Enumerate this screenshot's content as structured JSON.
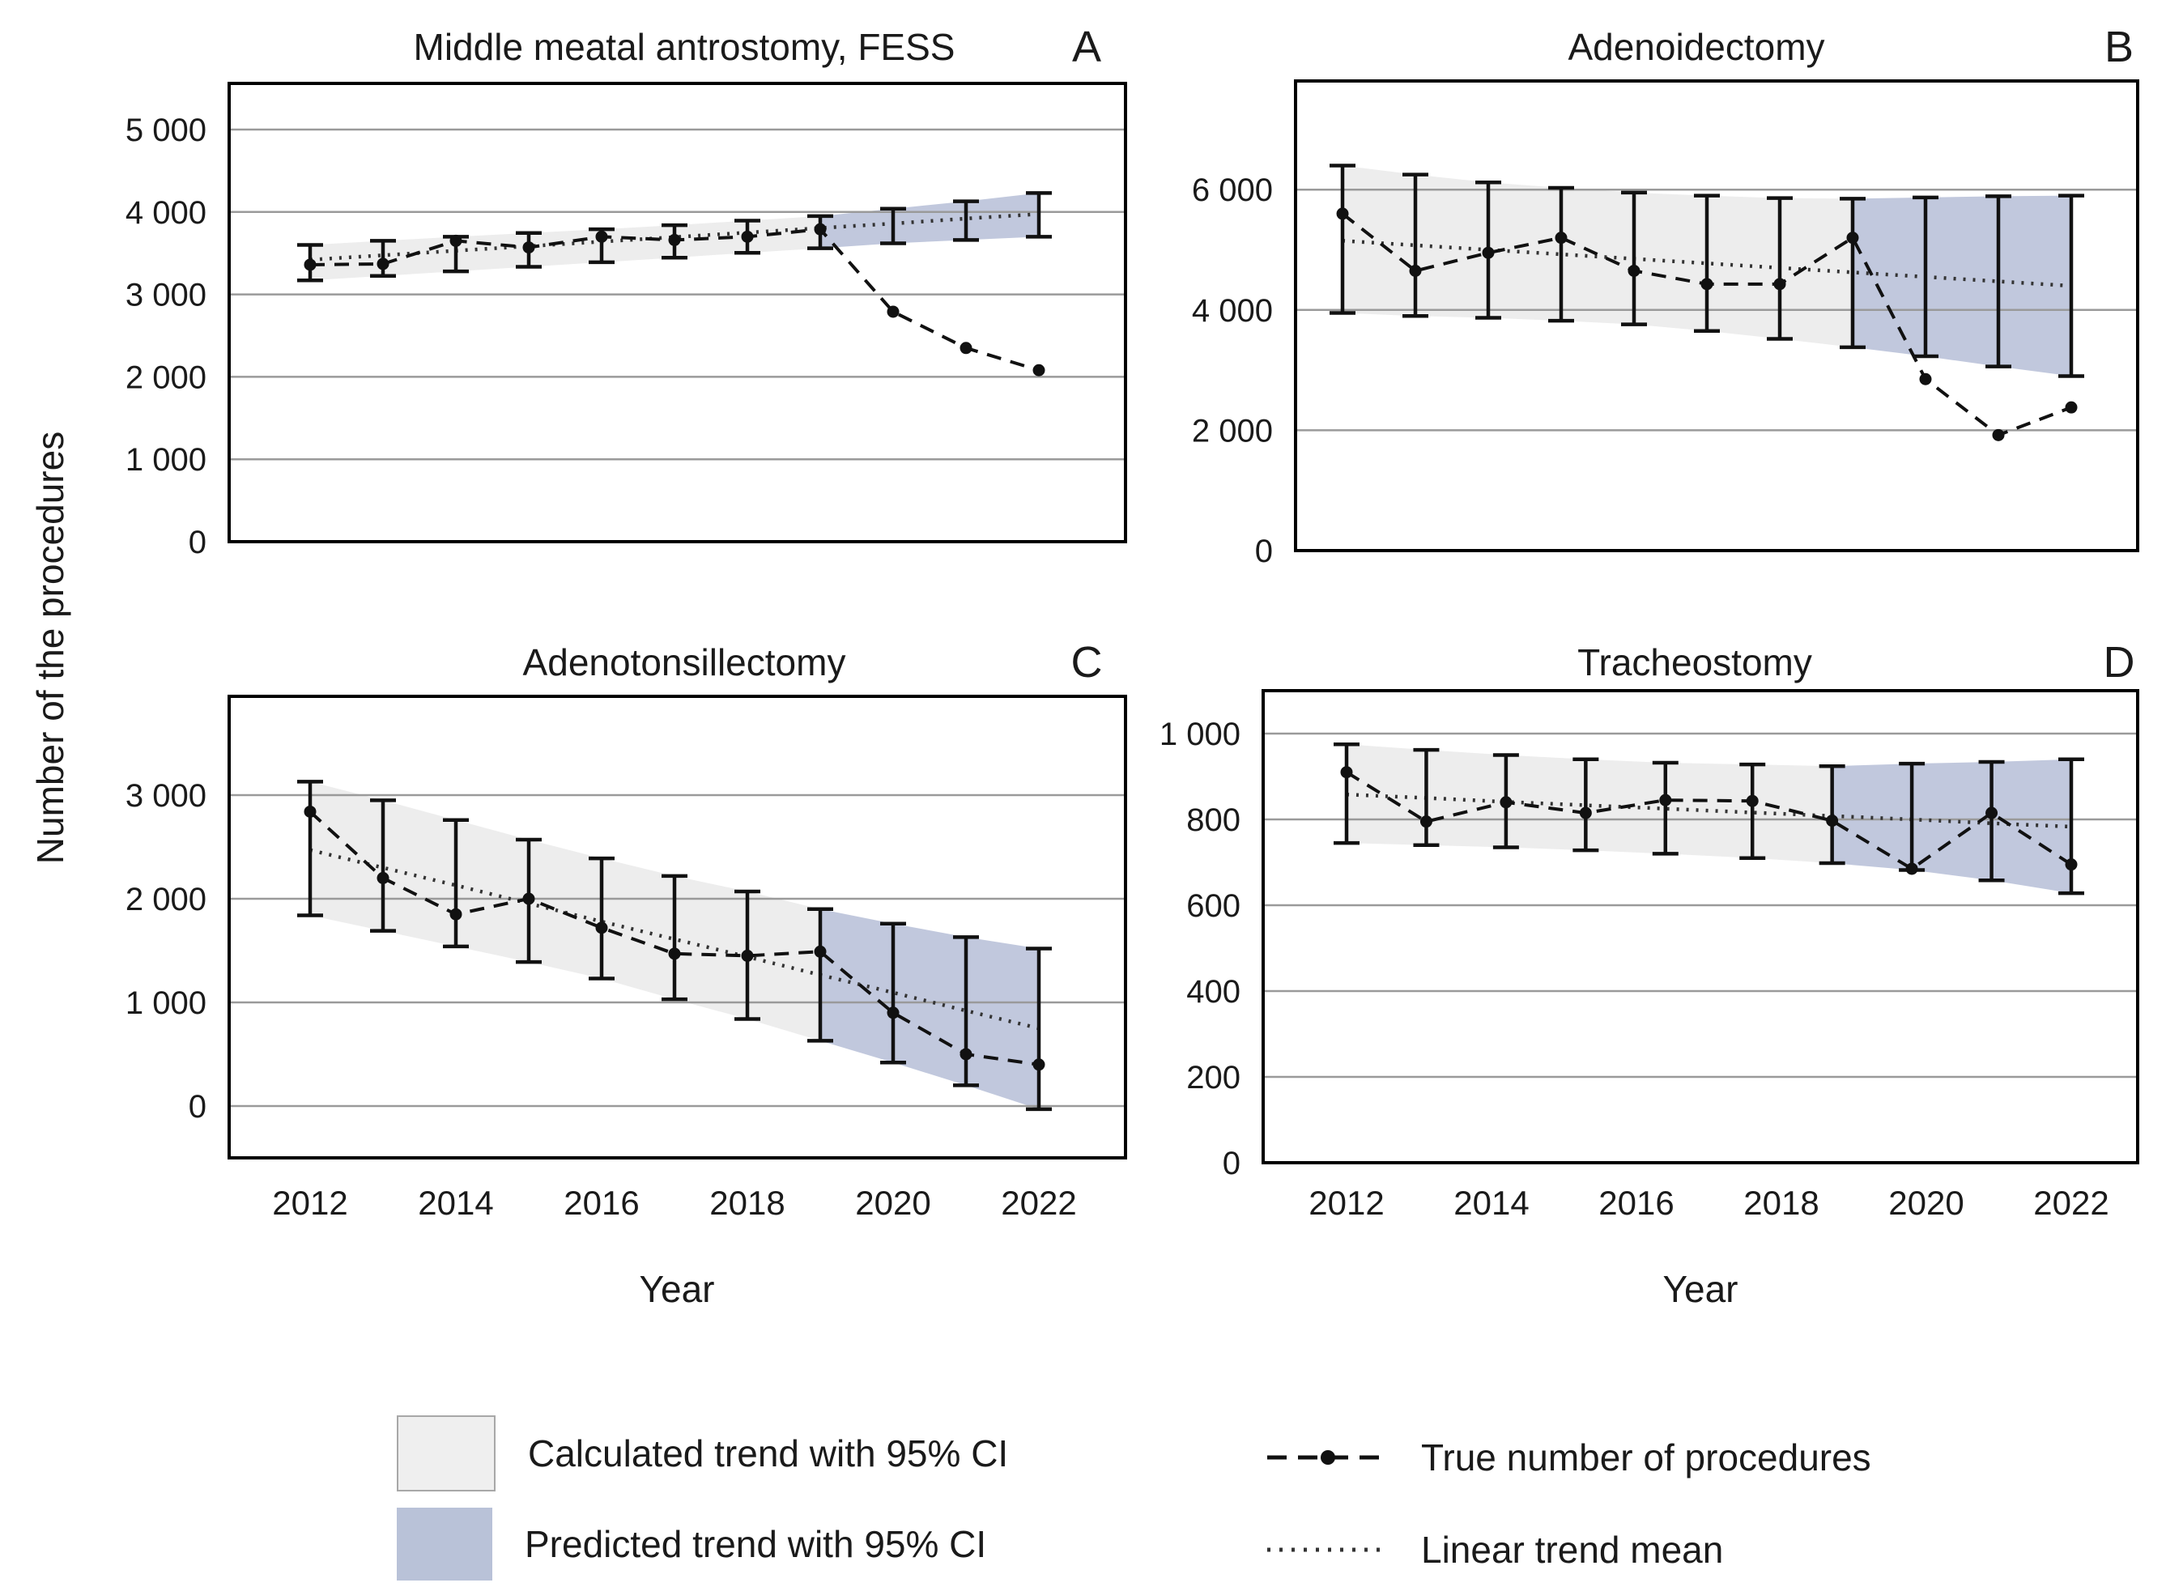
{
  "figure": {
    "y_axis_label": "Number of the procedures",
    "x_axis_label": "Year",
    "colors": {
      "background": "#ffffff",
      "calculated_band": "#ededed",
      "predicted_band": "#bcc3da",
      "gridline": "#9a9a9a",
      "data_line": "#111111",
      "trend_line": "#333333",
      "border": "#000000",
      "text": "#1a1a1a"
    },
    "legend": {
      "calculated": "Calculated trend with 95% CI",
      "predicted": "Predicted trend with 95% CI",
      "true_series": "True number of procedures",
      "trend_series": "Linear trend mean"
    }
  },
  "chart_data": [
    {
      "id": "A",
      "letter": "A",
      "title": "Middle meatal antrostomy, FESS",
      "type": "line",
      "x": [
        2012,
        2013,
        2014,
        2015,
        2016,
        2017,
        2018,
        2019,
        2020,
        2021,
        2022
      ],
      "series": [
        {
          "name": "True number of procedures",
          "style": "dashed-with-markers",
          "values": [
            3360,
            3370,
            3650,
            3570,
            3700,
            3660,
            3700,
            3790,
            2790,
            2350,
            2080
          ]
        },
        {
          "name": "Linear trend mean",
          "style": "dotted",
          "values": [
            3420,
            3475,
            3530,
            3585,
            3640,
            3695,
            3750,
            3805,
            3860,
            3920,
            3975
          ]
        }
      ],
      "ci_upper": [
        3600,
        3650,
        3700,
        3745,
        3790,
        3840,
        3895,
        3950,
        4040,
        4130,
        4230
      ],
      "ci_lower": [
        3170,
        3225,
        3280,
        3335,
        3390,
        3445,
        3505,
        3560,
        3620,
        3660,
        3700
      ],
      "forecast_start_index": 7,
      "y_ticks": [
        0,
        1000,
        2000,
        3000,
        4000,
        5000
      ],
      "y_tick_labels": [
        "0",
        "1 000",
        "2 000",
        "3 000",
        "4 000",
        "5 000"
      ],
      "x_tick_values": [],
      "x_tick_labels": [],
      "ylim": [
        0,
        5560
      ],
      "grid": true
    },
    {
      "id": "B",
      "letter": "B",
      "title": "Adenoidectomy",
      "type": "line",
      "x": [
        2012,
        2013,
        2014,
        2015,
        2016,
        2017,
        2018,
        2019,
        2020,
        2021,
        2022
      ],
      "series": [
        {
          "name": "True number of procedures",
          "style": "dashed-with-markers",
          "values": [
            5600,
            4650,
            4950,
            5200,
            4650,
            4430,
            4430,
            5200,
            2850,
            1920,
            2380
          ]
        },
        {
          "name": "Linear trend mean",
          "style": "dotted",
          "values": [
            5150,
            5075,
            5000,
            4925,
            4850,
            4775,
            4700,
            4625,
            4550,
            4475,
            4400
          ]
        }
      ],
      "ci_upper": [
        6400,
        6250,
        6120,
        6030,
        5950,
        5900,
        5860,
        5850,
        5870,
        5890,
        5900
      ],
      "ci_lower": [
        3950,
        3900,
        3870,
        3820,
        3760,
        3650,
        3520,
        3380,
        3230,
        3060,
        2900
      ],
      "forecast_start_index": 7,
      "y_ticks": [
        0,
        2000,
        4000,
        6000
      ],
      "y_tick_labels": [
        "0",
        "2 000",
        "4 000",
        "6 000"
      ],
      "x_tick_values": [],
      "x_tick_labels": [],
      "ylim": [
        0,
        7800
      ],
      "grid": true
    },
    {
      "id": "C",
      "letter": "C",
      "title": "Adenotonsillectomy",
      "type": "line",
      "x": [
        2012,
        2013,
        2014,
        2015,
        2016,
        2017,
        2018,
        2019,
        2020,
        2021,
        2022
      ],
      "series": [
        {
          "name": "True number of procedures",
          "style": "dashed-with-markers",
          "values": [
            2840,
            2200,
            1850,
            2000,
            1720,
            1470,
            1450,
            1490,
            900,
            500,
            400
          ]
        },
        {
          "name": "Linear trend mean",
          "style": "dotted",
          "values": [
            2470,
            2300,
            2130,
            1955,
            1780,
            1610,
            1440,
            1265,
            1095,
            920,
            750
          ]
        }
      ],
      "ci_upper": [
        3130,
        2950,
        2760,
        2570,
        2390,
        2220,
        2070,
        1900,
        1760,
        1630,
        1520
      ],
      "ci_lower": [
        1840,
        1690,
        1540,
        1390,
        1230,
        1030,
        840,
        630,
        420,
        200,
        -30
      ],
      "forecast_start_index": 7,
      "y_ticks": [
        0,
        1000,
        2000,
        3000
      ],
      "y_tick_labels": [
        "0",
        "1 000",
        "2 000",
        "3 000"
      ],
      "x_tick_values": [
        2012,
        2014,
        2016,
        2018,
        2020,
        2022
      ],
      "x_tick_labels": [
        "2012",
        "2014",
        "2016",
        "2018",
        "2020",
        "2022"
      ],
      "ylim": [
        -500,
        3950
      ],
      "grid": true
    },
    {
      "id": "D",
      "letter": "D",
      "title": "Tracheostomy",
      "type": "line",
      "x": [
        2012,
        2013.1,
        2014.2,
        2015.3,
        2016.4,
        2017.6,
        2018.7,
        2019.8,
        2020.9,
        2022
      ],
      "series": [
        {
          "name": "True number of procedures",
          "style": "dashed-with-markers",
          "values": [
            910,
            795,
            840,
            815,
            845,
            843,
            797,
            685,
            815,
            695
          ]
        },
        {
          "name": "Linear trend mean",
          "style": "dotted",
          "values": [
            858,
            850,
            841,
            833,
            825,
            816,
            808,
            800,
            791,
            783
          ]
        }
      ],
      "ci_upper": [
        975,
        962,
        950,
        940,
        932,
        928,
        924,
        930,
        934,
        940
      ],
      "ci_lower": [
        745,
        740,
        735,
        728,
        720,
        710,
        698,
        682,
        658,
        628
      ],
      "forecast_start_index": 6,
      "y_ticks": [
        0,
        200,
        400,
        600,
        800,
        1000
      ],
      "y_tick_labels": [
        "0",
        "200",
        "400",
        "600",
        "800",
        "1 000"
      ],
      "x_tick_values": [
        2012,
        2014,
        2016,
        2018,
        2020,
        2022
      ],
      "x_tick_labels": [
        "2012",
        "2014",
        "2016",
        "2018",
        "2020",
        "2022"
      ],
      "ylim": [
        0,
        1100
      ],
      "grid": true
    }
  ]
}
